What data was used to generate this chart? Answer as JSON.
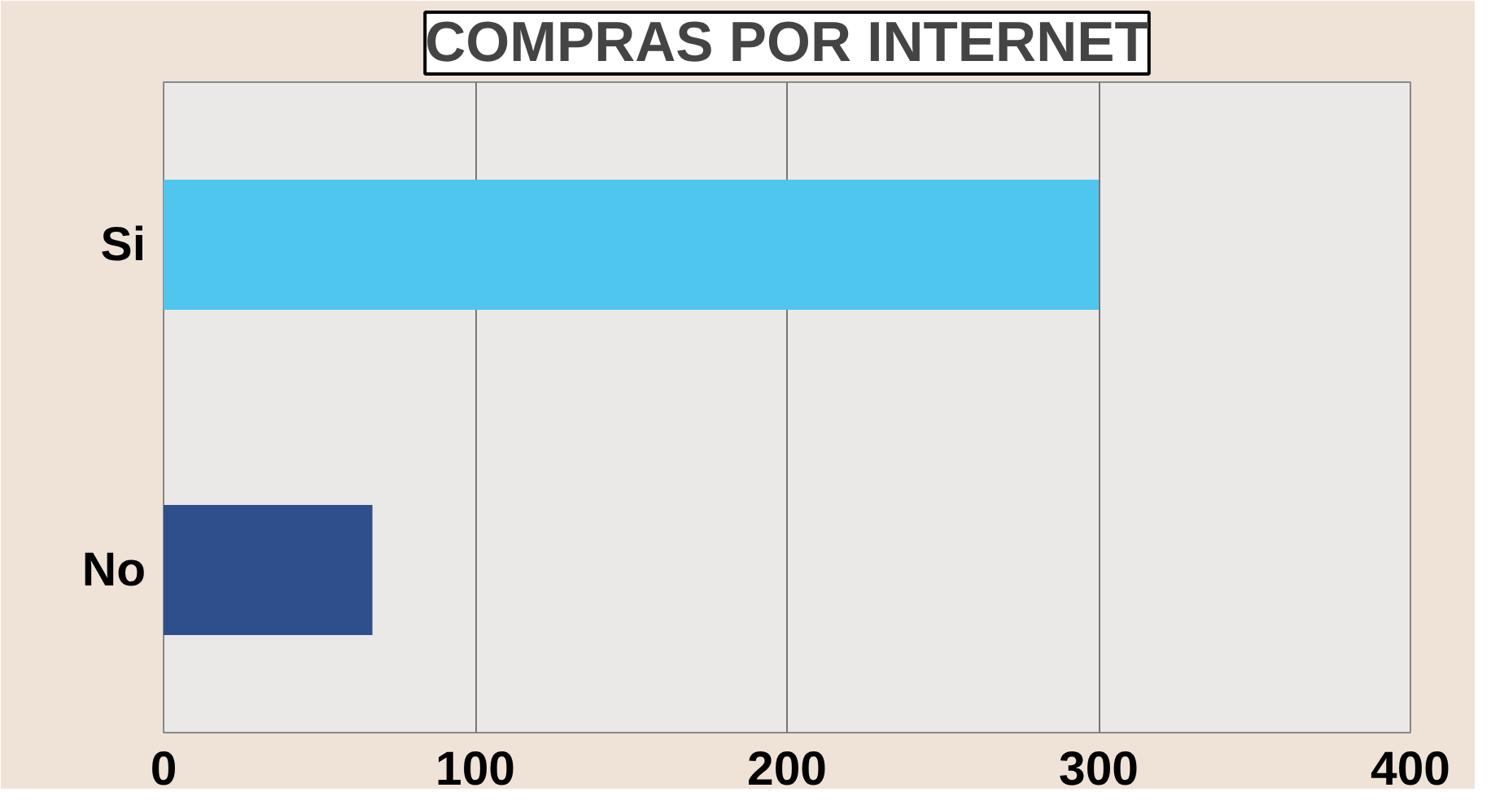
{
  "chart_data": {
    "type": "bar",
    "orientation": "horizontal",
    "title": "COMPRAS POR INTERNET",
    "categories": [
      "Si",
      "No"
    ],
    "values": [
      300,
      67
    ],
    "colors": [
      "#4fc6ee",
      "#2e4f8c"
    ],
    "xlim": [
      0,
      400
    ],
    "xticks": [
      0,
      100,
      200,
      300,
      400
    ],
    "grid": "x"
  }
}
